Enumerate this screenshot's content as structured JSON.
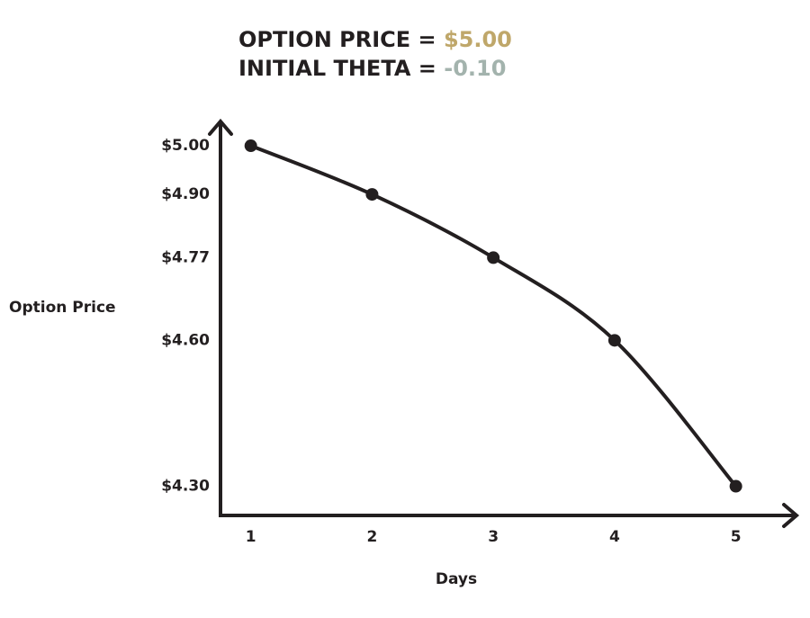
{
  "chart_data": {
    "type": "line",
    "annotations": [
      {
        "text": "OPTION PRICE =",
        "value": "$5.00",
        "color": "#bfa76a"
      },
      {
        "text": "INITIAL THETA =",
        "value": "-0.10",
        "color": "#a3b3ad"
      }
    ],
    "x_label": "Days",
    "y_label": "Option Price",
    "x": [
      1,
      2,
      3,
      4,
      5
    ],
    "values": [
      5.0,
      4.9,
      4.77,
      4.6,
      4.3
    ],
    "color": "#231f20",
    "xlim": [
      0.75,
      5.5
    ],
    "xticks": [
      1,
      2,
      3,
      4,
      5
    ],
    "ylim": [
      4.24,
      5.05
    ],
    "yticks": [
      {
        "value": 5.0,
        "label": "$5.00"
      },
      {
        "value": 4.9,
        "label": "$4.90"
      },
      {
        "value": 4.77,
        "label": "$4.77"
      },
      {
        "value": 4.6,
        "label": "$4.60"
      },
      {
        "value": 4.3,
        "label": "$4.30"
      }
    ],
    "grid": false
  }
}
